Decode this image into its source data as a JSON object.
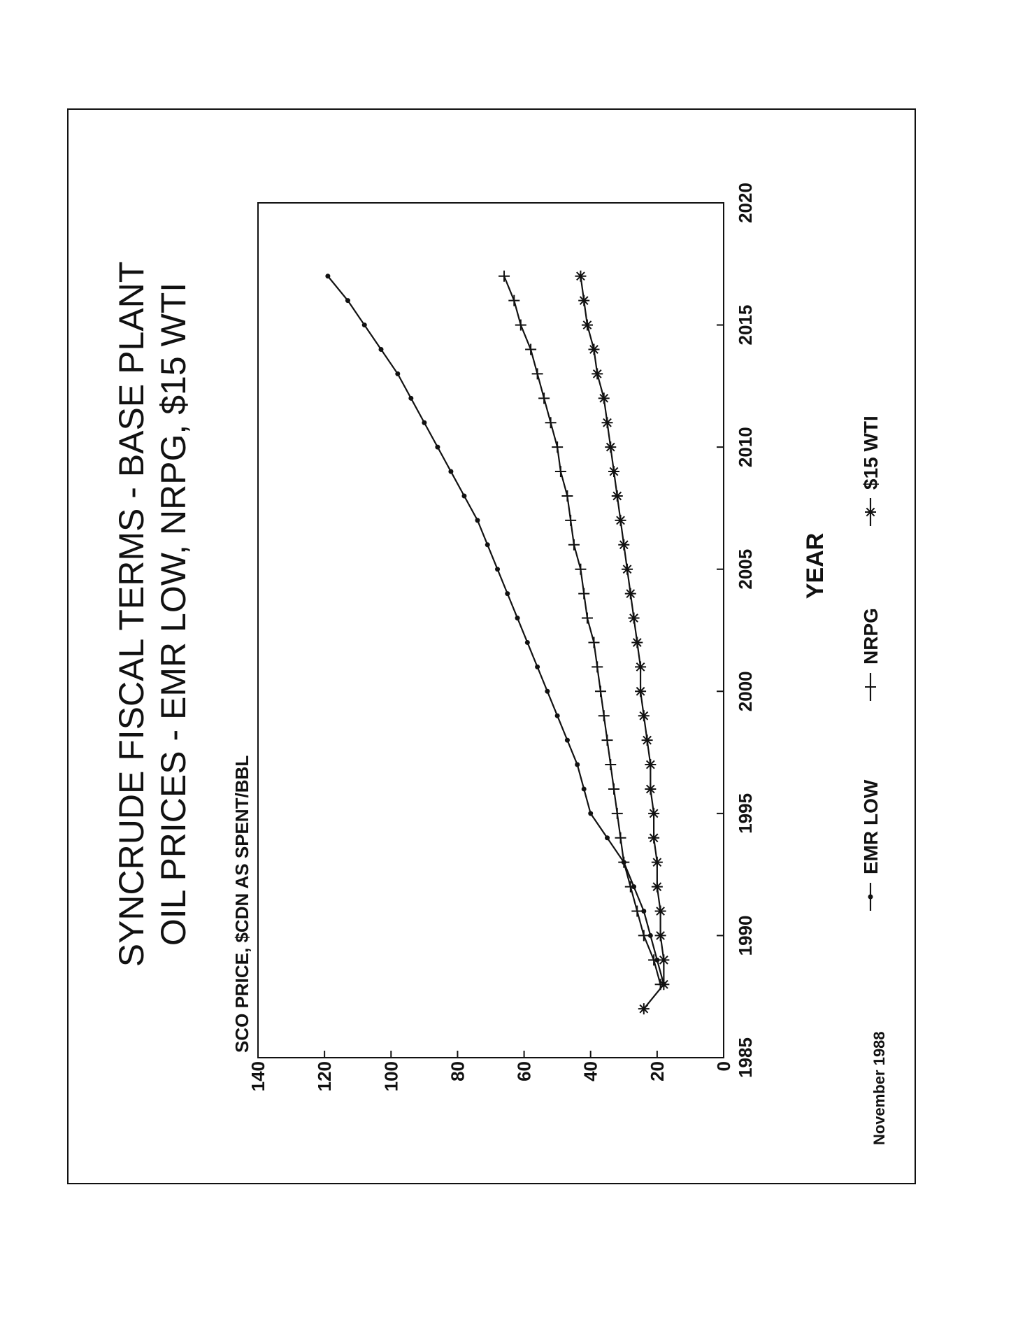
{
  "page": {
    "footer": "November 1988"
  },
  "chart_data": {
    "type": "line",
    "title_line1": "SYNCRUDE FISCAL TERMS  -  BASE PLANT",
    "title_line2": "OIL PRICES   -  EMR LOW, NRPG, $15 WTI",
    "ylabel": "SCO PRICE, $CDN AS SPENT/BBL",
    "xlabel": "YEAR",
    "xlim": [
      1985,
      2020
    ],
    "ylim": [
      0,
      140
    ],
    "xticks": [
      1985,
      1990,
      1995,
      2000,
      2005,
      2010,
      2015,
      2020
    ],
    "yticks": [
      0,
      20,
      40,
      60,
      80,
      100,
      120,
      140
    ],
    "legend_position": "bottom",
    "grid": false,
    "x": [
      1987,
      1988,
      1989,
      1990,
      1991,
      1992,
      1993,
      1994,
      1995,
      1996,
      1997,
      1998,
      1999,
      2000,
      2001,
      2002,
      2003,
      2004,
      2005,
      2006,
      2007,
      2008,
      2009,
      2010,
      2011,
      2012,
      2013,
      2014,
      2015,
      2016,
      2017
    ],
    "series": [
      {
        "name": "EMR LOW",
        "marker": "dot",
        "x": [
          1988,
          1989,
          1990,
          1991,
          1992,
          1993,
          1994,
          1995,
          1996,
          1997,
          1998,
          1999,
          2000,
          2001,
          2002,
          2003,
          2004,
          2005,
          2006,
          2007,
          2008,
          2009,
          2010,
          2011,
          2012,
          2013,
          2014,
          2015,
          2016,
          2017
        ],
        "values": [
          18,
          20,
          22,
          24,
          27,
          30,
          35,
          40,
          42,
          44,
          47,
          50,
          53,
          56,
          59,
          62,
          65,
          68,
          71,
          74,
          78,
          82,
          86,
          90,
          94,
          98,
          103,
          108,
          113,
          119
        ]
      },
      {
        "name": "NRPG",
        "marker": "plus",
        "x": [
          1988,
          1989,
          1990,
          1991,
          1992,
          1993,
          1994,
          1995,
          1996,
          1997,
          1998,
          1999,
          2000,
          2001,
          2002,
          2003,
          2004,
          2005,
          2006,
          2007,
          2008,
          2009,
          2010,
          2011,
          2012,
          2013,
          2014,
          2015,
          2016,
          2017
        ],
        "values": [
          19,
          21,
          24,
          26,
          28,
          30,
          31,
          32,
          33,
          34,
          35,
          36,
          37,
          38,
          39,
          41,
          42,
          43,
          45,
          46,
          47,
          49,
          50,
          52,
          54,
          56,
          58,
          61,
          63,
          66
        ]
      },
      {
        "name": "$15 WTI",
        "marker": "star",
        "x": [
          1987,
          1988,
          1989,
          1990,
          1991,
          1992,
          1993,
          1994,
          1995,
          1996,
          1997,
          1998,
          1999,
          2000,
          2001,
          2002,
          2003,
          2004,
          2005,
          2006,
          2007,
          2008,
          2009,
          2010,
          2011,
          2012,
          2013,
          2014,
          2015,
          2016,
          2017
        ],
        "values": [
          24,
          18,
          18,
          19,
          19,
          20,
          20,
          21,
          21,
          22,
          22,
          23,
          24,
          25,
          25,
          26,
          27,
          28,
          29,
          30,
          31,
          32,
          33,
          34,
          35,
          36,
          38,
          39,
          41,
          42,
          43
        ]
      }
    ]
  }
}
